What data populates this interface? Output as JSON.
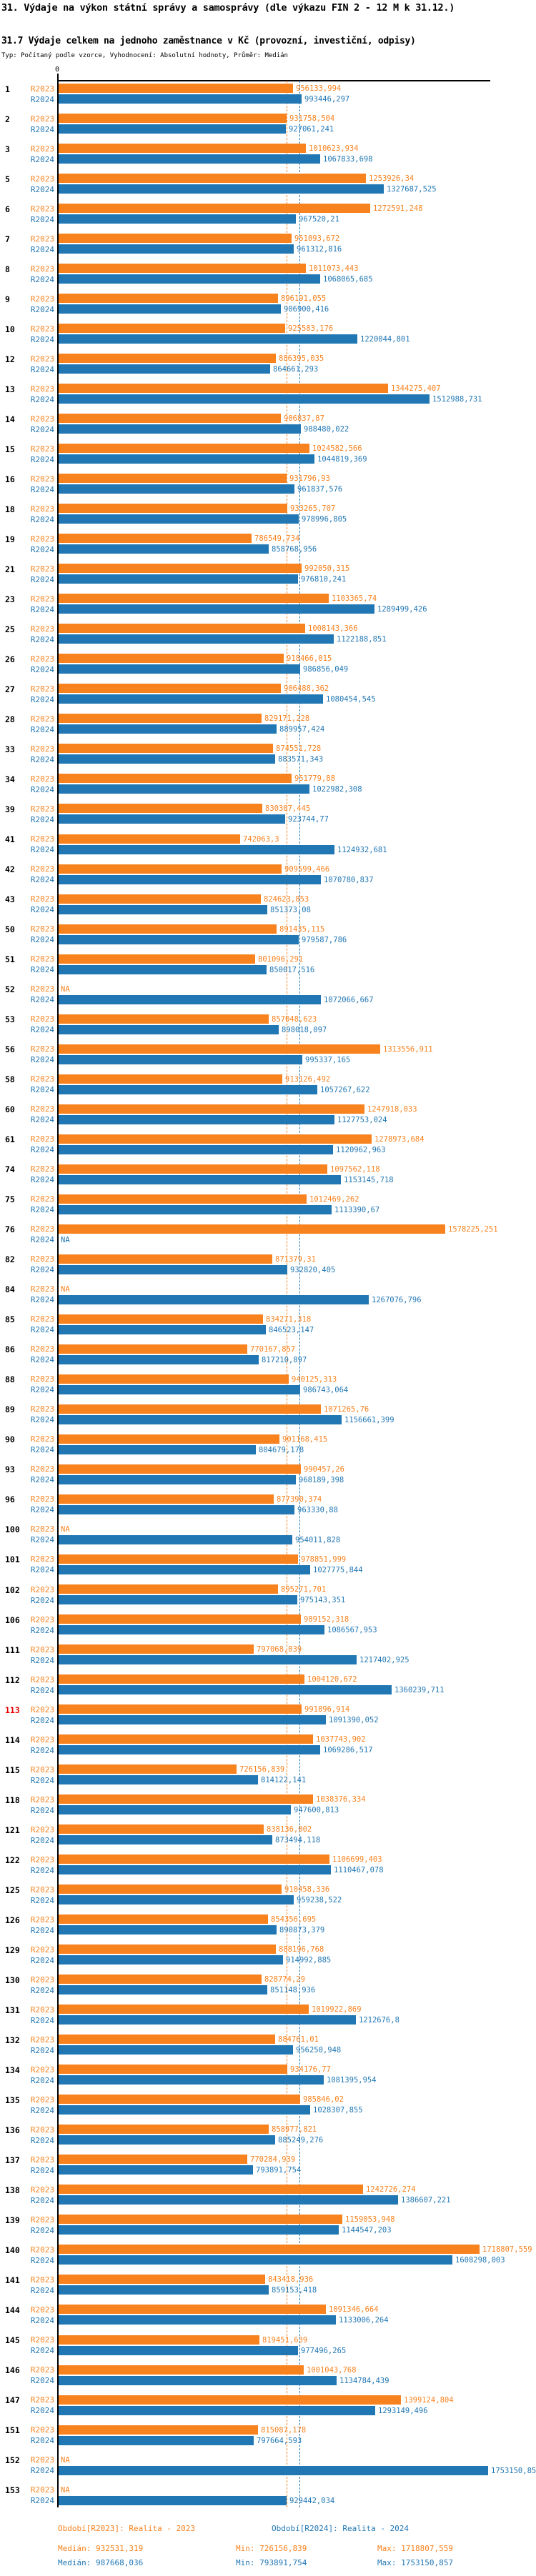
{
  "title": "31. Výdaje na výkon státní správy a samosprávy (dle výkazu FIN 2 - 12 M k 31.12.)",
  "subtitle": "31.7 Výdaje celkem na jednoho zaměstnance v Kč (provozní, investiční, odpisy)",
  "meta": "Typ: Počítaný podle vzorce, Vyhodnocení: Absolutní hodnoty, Průměr: Medián",
  "axis": {
    "zero_label": "0"
  },
  "colors": {
    "r2023": "#F8821E",
    "r2024": "#2077B4",
    "highlight_row": "#E60000",
    "axis": "#000000"
  },
  "legend": {
    "r2023": "Období[R2023]: Realita - 2023",
    "r2024": "Období[R2024]: Realita - 2024"
  },
  "stats": {
    "r2023": {
      "median": "Medián: 932531,319",
      "min": "Min: 726156,839",
      "max": "Max: 1718807,559"
    },
    "r2024": {
      "median": "Medián: 987668,036",
      "min": "Min: 793891,754",
      "max": "Max: 1753150,857"
    }
  },
  "chart_data": {
    "type": "bar",
    "orientation": "horizontal",
    "value_unit": "Kč",
    "xlim": [
      0,
      1840000
    ],
    "grid": false,
    "legend_position": "bottom",
    "series": [
      {
        "key": "r2023",
        "label": "R2023",
        "color": "#F8821E",
        "median": "932531,319"
      },
      {
        "key": "r2024",
        "label": "R2024",
        "color": "#2077B4",
        "median": "987668,036"
      }
    ],
    "groups": [
      {
        "id": "1",
        "r2023": "956133,994",
        "r2024": "993446,297"
      },
      {
        "id": "2",
        "r2023": "931758,504",
        "r2024": "927061,241"
      },
      {
        "id": "3",
        "r2023": "1010623,934",
        "r2024": "1067833,698"
      },
      {
        "id": "5",
        "r2023": "1253926,34",
        "r2024": "1327687,525"
      },
      {
        "id": "6",
        "r2023": "1272591,248",
        "r2024": "967520,21"
      },
      {
        "id": "7",
        "r2023": "951093,672",
        "r2024": "961312,816"
      },
      {
        "id": "8",
        "r2023": "1011073,443",
        "r2024": "1068065,685"
      },
      {
        "id": "9",
        "r2023": "896191,055",
        "r2024": "906900,416"
      },
      {
        "id": "10",
        "r2023": "925583,176",
        "r2024": "1220044,801"
      },
      {
        "id": "12",
        "r2023": "886395,035",
        "r2024": "864661,293"
      },
      {
        "id": "13",
        "r2023": "1344275,407",
        "r2024": "1512988,731"
      },
      {
        "id": "14",
        "r2023": "906837,87",
        "r2024": "988480,022"
      },
      {
        "id": "15",
        "r2023": "1024582,566",
        "r2024": "1044819,369"
      },
      {
        "id": "16",
        "r2023": "931796,93",
        "r2024": "961837,576"
      },
      {
        "id": "18",
        "r2023": "933265,707",
        "r2024": "978996,805"
      },
      {
        "id": "19",
        "r2023": "786549,734",
        "r2024": "858768,956"
      },
      {
        "id": "21",
        "r2023": "992050,315",
        "r2024": "976810,241"
      },
      {
        "id": "23",
        "r2023": "1103365,74",
        "r2024": "1289499,426"
      },
      {
        "id": "25",
        "r2023": "1008143,366",
        "r2024": "1122188,851"
      },
      {
        "id": "26",
        "r2023": "918466,015",
        "r2024": "986856,049"
      },
      {
        "id": "27",
        "r2023": "906488,362",
        "r2024": "1080454,545"
      },
      {
        "id": "28",
        "r2023": "829171,228",
        "r2024": "889957,424"
      },
      {
        "id": "33",
        "r2023": "874551,728",
        "r2024": "883571,343"
      },
      {
        "id": "34",
        "r2023": "951779,88",
        "r2024": "1022982,308"
      },
      {
        "id": "39",
        "r2023": "830307,445",
        "r2024": "923744,77"
      },
      {
        "id": "41",
        "r2023": "742063,3",
        "r2024": "1124932,681"
      },
      {
        "id": "42",
        "r2023": "909599,466",
        "r2024": "1070780,837"
      },
      {
        "id": "43",
        "r2023": "824623,853",
        "r2024": "851373,08"
      },
      {
        "id": "50",
        "r2023": "891435,115",
        "r2024": "979587,786"
      },
      {
        "id": "51",
        "r2023": "801096,291",
        "r2024": "850017,516"
      },
      {
        "id": "52",
        "r2023": "NA",
        "r2024": "1072066,667"
      },
      {
        "id": "53",
        "r2023": "857048,623",
        "r2024": "898018,097"
      },
      {
        "id": "56",
        "r2023": "1313556,911",
        "r2024": "995337,165"
      },
      {
        "id": "58",
        "r2023": "913126,492",
        "r2024": "1057267,622"
      },
      {
        "id": "60",
        "r2023": "1247918,033",
        "r2024": "1127753,024"
      },
      {
        "id": "61",
        "r2023": "1278973,684",
        "r2024": "1120962,963"
      },
      {
        "id": "74",
        "r2023": "1097562,118",
        "r2024": "1153145,718"
      },
      {
        "id": "75",
        "r2023": "1012469,262",
        "r2024": "1113390,67"
      },
      {
        "id": "76",
        "r2023": "1578225,251",
        "r2024": "NA"
      },
      {
        "id": "82",
        "r2023": "871379,31",
        "r2024": "932820,405"
      },
      {
        "id": "84",
        "r2023": "NA",
        "r2024": "1267076,796"
      },
      {
        "id": "85",
        "r2023": "834271,318",
        "r2024": "846523,147"
      },
      {
        "id": "86",
        "r2023": "770167,857",
        "r2024": "817210,897"
      },
      {
        "id": "88",
        "r2023": "940125,313",
        "r2024": "986743,064"
      },
      {
        "id": "89",
        "r2023": "1071265,76",
        "r2024": "1156661,399"
      },
      {
        "id": "90",
        "r2023": "901168,415",
        "r2024": "804679,178"
      },
      {
        "id": "93",
        "r2023": "990457,26",
        "r2024": "968189,398"
      },
      {
        "id": "96",
        "r2023": "877390,374",
        "r2024": "963330,88"
      },
      {
        "id": "100",
        "r2023": "NA",
        "r2024": "954011,828"
      },
      {
        "id": "101",
        "r2023": "978851,999",
        "r2024": "1027775,844"
      },
      {
        "id": "102",
        "r2023": "895271,701",
        "r2024": "975143,351"
      },
      {
        "id": "106",
        "r2023": "989152,318",
        "r2024": "1086567,953"
      },
      {
        "id": "111",
        "r2023": "797068,039",
        "r2024": "1217402,925"
      },
      {
        "id": "112",
        "r2023": "1004120,672",
        "r2024": "1360239,711"
      },
      {
        "id": "113",
        "r2023": "991896,914",
        "r2024": "1091390,052",
        "highlight": true
      },
      {
        "id": "114",
        "r2023": "1037743,902",
        "r2024": "1069286,517"
      },
      {
        "id": "115",
        "r2023": "726156,839",
        "r2024": "814122,141"
      },
      {
        "id": "118",
        "r2023": "1038376,334",
        "r2024": "947600,813"
      },
      {
        "id": "121",
        "r2023": "838136,002",
        "r2024": "873494,118"
      },
      {
        "id": "122",
        "r2023": "1106699,403",
        "r2024": "1110467,078"
      },
      {
        "id": "125",
        "r2023": "910458,336",
        "r2024": "959238,522"
      },
      {
        "id": "126",
        "r2023": "854356,695",
        "r2024": "890873,379"
      },
      {
        "id": "129",
        "r2023": "888196,768",
        "r2024": "914992,885"
      },
      {
        "id": "130",
        "r2023": "828774,29",
        "r2024": "851148,936"
      },
      {
        "id": "131",
        "r2023": "1019922,869",
        "r2024": "1212676,8"
      },
      {
        "id": "132",
        "r2023": "884761,01",
        "r2024": "956250,948"
      },
      {
        "id": "134",
        "r2023": "934176,77",
        "r2024": "1081395,954"
      },
      {
        "id": "135",
        "r2023": "985846,02",
        "r2024": "1028307,855"
      },
      {
        "id": "136",
        "r2023": "858977,821",
        "r2024": "885249,276"
      },
      {
        "id": "137",
        "r2023": "770284,939",
        "r2024": "793891,754"
      },
      {
        "id": "138",
        "r2023": "1242726,274",
        "r2024": "1386607,221"
      },
      {
        "id": "139",
        "r2023": "1159053,948",
        "r2024": "1144547,203"
      },
      {
        "id": "140",
        "r2023": "1718807,559",
        "r2024": "1608298,003"
      },
      {
        "id": "141",
        "r2023": "843418,936",
        "r2024": "859153,418"
      },
      {
        "id": "144",
        "r2023": "1091346,664",
        "r2024": "1133006,264"
      },
      {
        "id": "145",
        "r2023": "819451,639",
        "r2024": "977496,265"
      },
      {
        "id": "146",
        "r2023": "1001043,768",
        "r2024": "1134784,439"
      },
      {
        "id": "147",
        "r2023": "1399124,804",
        "r2024": "1293149,496"
      },
      {
        "id": "151",
        "r2023": "815087,178",
        "r2024": "797664,593"
      },
      {
        "id": "152",
        "r2023": "NA",
        "r2024": "1753150,857"
      },
      {
        "id": "153",
        "r2023": "NA",
        "r2024": "929442,034"
      }
    ]
  }
}
